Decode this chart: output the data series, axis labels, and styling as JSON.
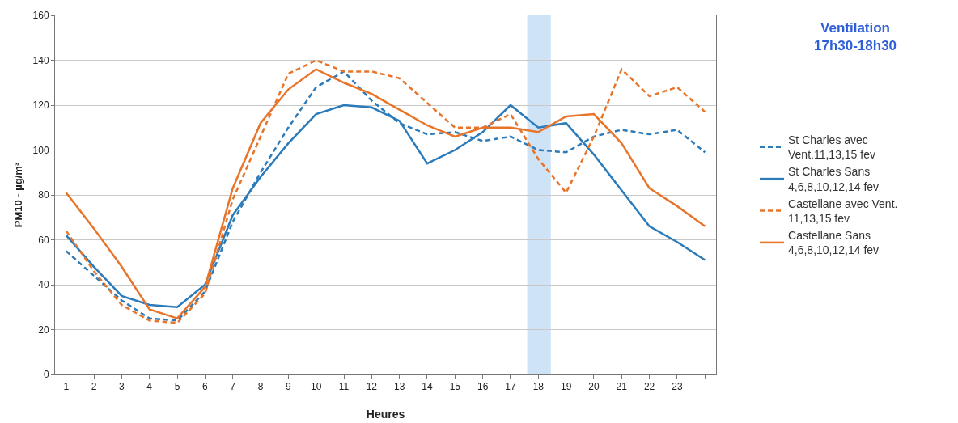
{
  "chart_data": {
    "type": "line",
    "xlabel": "Heures",
    "ylabel": "PM10 - µg/m³",
    "x": [
      1,
      2,
      3,
      4,
      5,
      6,
      7,
      8,
      9,
      10,
      11,
      12,
      13,
      14,
      15,
      16,
      17,
      18,
      19,
      20,
      21,
      22,
      23,
      24
    ],
    "series": [
      {
        "name": "St Charles avec Vent.11,13,15 fev",
        "color": "#2b7bba",
        "line_style": "dashed",
        "values": [
          55,
          44,
          33,
          25,
          24,
          37,
          68,
          90,
          110,
          128,
          135,
          122,
          112,
          107,
          108,
          104,
          106,
          100,
          99,
          106,
          109,
          107,
          109,
          99
        ]
      },
      {
        "name": "St Charles Sans 4,6,8,10,12,14 fev",
        "color": "#2b7bba",
        "line_style": "solid",
        "values": [
          62,
          48,
          35,
          31,
          30,
          40,
          71,
          88,
          103,
          116,
          120,
          119,
          113,
          94,
          100,
          108,
          120,
          110,
          112,
          98,
          82,
          66,
          59,
          51
        ]
      },
      {
        "name": "Castellane avec Vent. 11,13,15 fev",
        "color": "#e8742a",
        "line_style": "dashed",
        "values": [
          64,
          46,
          31,
          24,
          23,
          36,
          78,
          106,
          134,
          140,
          135,
          135,
          132,
          121,
          110,
          110,
          116,
          96,
          81,
          106,
          136,
          124,
          128,
          117
        ]
      },
      {
        "name": "Castellane Sans 4,6,8,10,12,14 fev",
        "color": "#e8742a",
        "line_style": "solid",
        "values": [
          81,
          65,
          48,
          29,
          25,
          39,
          83,
          112,
          127,
          136,
          130,
          125,
          118,
          111,
          106,
          110,
          110,
          108,
          115,
          116,
          103,
          83,
          75,
          66
        ]
      }
    ],
    "xlim": [
      0.6,
      24.4
    ],
    "xticks": [
      1,
      2,
      3,
      4,
      5,
      6,
      7,
      8,
      9,
      10,
      11,
      12,
      13,
      14,
      15,
      16,
      17,
      18,
      19,
      20,
      21,
      22,
      23,
      {
        "value": 24,
        "label": null
      }
    ],
    "ylim": [
      0,
      160
    ],
    "yticks": [
      0,
      20,
      40,
      60,
      80,
      100,
      120,
      140,
      160
    ],
    "bands": [
      {
        "axis": "x",
        "from": 17.6,
        "to": 18.45,
        "color": "#cfe3f7"
      }
    ],
    "annotations": [
      "Ventilation 17h30-18h30"
    ],
    "grid": "y",
    "legend": "right",
    "marker": "none"
  }
}
